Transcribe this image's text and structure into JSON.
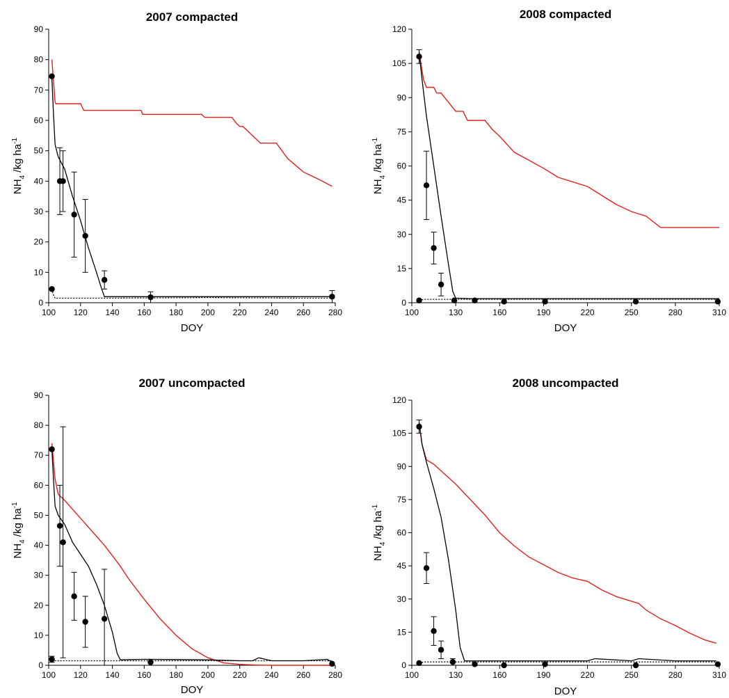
{
  "chart_data": [
    {
      "type": "line",
      "title": "2007 compacted",
      "xlabel": "DOY",
      "ylabel": "NH4 /kg ha-1",
      "ylabel_main": "NH",
      "ylabel_sub": "4",
      "ylabel_units": " /kg ha",
      "ylabel_sup": "-1",
      "xlim": [
        100,
        280
      ],
      "ylim": [
        0,
        90
      ],
      "xticks": [
        100,
        120,
        140,
        160,
        180,
        200,
        220,
        240,
        260,
        280
      ],
      "yticks": [
        0,
        10,
        20,
        30,
        40,
        50,
        60,
        70,
        80,
        90
      ],
      "series": [
        {
          "style": "red",
          "color": "#e0201b",
          "x": [
            102,
            104,
            104.5,
            120,
            122,
            158,
            159,
            196,
            198,
            215,
            218,
            220,
            222,
            233,
            235,
            243,
            250,
            260,
            270,
            278
          ],
          "y": [
            80,
            66,
            65.5,
            65.5,
            63.3,
            63.3,
            62,
            62,
            61,
            61,
            59,
            58,
            58,
            52.5,
            52.5,
            52.5,
            47.5,
            43,
            40.5,
            38.3
          ]
        },
        {
          "style": "black",
          "color": "#000000",
          "x": [
            102,
            103,
            104,
            106,
            110,
            115,
            120,
            125,
            130,
            133,
            135,
            150,
            180,
            220,
            260,
            278
          ],
          "y": [
            74,
            62,
            52,
            48,
            44,
            35,
            27,
            18,
            10,
            5,
            2,
            2,
            2,
            2,
            2,
            2
          ]
        },
        {
          "style": "dotted",
          "color": "#000000",
          "x": [
            102,
            103,
            104,
            110,
            140,
            200,
            260,
            278
          ],
          "y": [
            4.5,
            2.5,
            1.5,
            1.5,
            1.5,
            1.7,
            1.5,
            1.5
          ]
        }
      ],
      "points": [
        {
          "x": 102,
          "y": 74.5,
          "err": 0
        },
        {
          "x": 102,
          "y": 4.5,
          "err": 0
        },
        {
          "x": 107,
          "y": 40,
          "err": 11
        },
        {
          "x": 109,
          "y": 40,
          "err": 10
        },
        {
          "x": 116,
          "y": 29,
          "err": 14
        },
        {
          "x": 123,
          "y": 22,
          "err": 12
        },
        {
          "x": 135,
          "y": 7.5,
          "err": 3
        },
        {
          "x": 164,
          "y": 1.8,
          "err": 1.8
        },
        {
          "x": 278,
          "y": 2,
          "err": 2
        }
      ]
    },
    {
      "type": "line",
      "title": "2008 compacted",
      "xlabel": "DOY",
      "ylabel": "NH4 /kg ha-1",
      "ylabel_main": "NH",
      "ylabel_sub": "4",
      "ylabel_units": " /kg ha",
      "ylabel_sup": "-1",
      "xlim": [
        100,
        310
      ],
      "ylim": [
        0,
        120
      ],
      "xticks": [
        100,
        130,
        160,
        190,
        220,
        250,
        280,
        310
      ],
      "yticks": [
        0,
        15,
        30,
        45,
        60,
        75,
        90,
        105,
        120
      ],
      "series": [
        {
          "style": "red",
          "color": "#e0201b",
          "x": [
            105,
            108,
            110,
            115,
            117,
            120,
            125,
            130,
            135,
            138,
            142,
            150,
            155,
            160,
            170,
            180,
            190,
            200,
            210,
            220,
            230,
            240,
            250,
            260,
            270,
            280,
            290,
            300,
            310
          ],
          "y": [
            110,
            98,
            94.5,
            94.5,
            92,
            92,
            88,
            84,
            84,
            80,
            80,
            80,
            76,
            73,
            66,
            62.5,
            59,
            55,
            53,
            51,
            47,
            43,
            40,
            38,
            33,
            33,
            33,
            33,
            33
          ]
        },
        {
          "style": "black",
          "color": "#000000",
          "x": [
            105,
            107,
            110,
            115,
            120,
            125,
            128,
            130,
            140,
            160,
            190,
            220,
            250,
            280,
            310
          ],
          "y": [
            110,
            98,
            82,
            60,
            38,
            17,
            5,
            2,
            1.8,
            1.8,
            1.8,
            1.8,
            1.8,
            1.8,
            1.8
          ]
        },
        {
          "style": "dotted",
          "color": "#000000",
          "x": [
            105,
            108,
            115,
            140,
            190,
            250,
            310
          ],
          "y": [
            1,
            1.5,
            1.5,
            1.5,
            1.5,
            1.5,
            1.5
          ]
        }
      ],
      "points": [
        {
          "x": 105,
          "y": 108,
          "err": 3
        },
        {
          "x": 105,
          "y": 1,
          "err": 0
        },
        {
          "x": 110,
          "y": 51.5,
          "err": 15
        },
        {
          "x": 115,
          "y": 24,
          "err": 7
        },
        {
          "x": 120,
          "y": 8,
          "err": 5
        },
        {
          "x": 129,
          "y": 1,
          "err": 0
        },
        {
          "x": 143,
          "y": 1,
          "err": 0
        },
        {
          "x": 163,
          "y": 0.5,
          "err": 0
        },
        {
          "x": 191,
          "y": 0.5,
          "err": 0
        },
        {
          "x": 253,
          "y": 0.5,
          "err": 0
        },
        {
          "x": 309,
          "y": 0.5,
          "err": 0
        }
      ]
    },
    {
      "type": "line",
      "title": "2007 uncompacted",
      "xlabel": "DOY",
      "ylabel": "NH4 /kg ha-1",
      "ylabel_main": "NH",
      "ylabel_sub": "4",
      "ylabel_units": " /kg ha",
      "ylabel_sup": "-1",
      "xlim": [
        100,
        280
      ],
      "ylim": [
        0,
        90
      ],
      "xticks": [
        100,
        120,
        140,
        160,
        180,
        200,
        220,
        240,
        260,
        280
      ],
      "yticks": [
        0,
        10,
        20,
        30,
        40,
        50,
        60,
        70,
        80,
        90
      ],
      "series": [
        {
          "style": "red",
          "color": "#e0201b",
          "x": [
            102,
            104,
            106,
            110,
            115,
            120,
            125,
            130,
            135,
            140,
            145,
            150,
            160,
            170,
            180,
            190,
            200,
            210,
            220,
            230,
            240,
            260,
            278
          ],
          "y": [
            74,
            62,
            57,
            55,
            52,
            49,
            46,
            43,
            40,
            36.5,
            33,
            29,
            22,
            15.5,
            10,
            5.5,
            2.5,
            0.8,
            0.3,
            0.1,
            0,
            0,
            0
          ]
        },
        {
          "style": "black",
          "color": "#000000",
          "x": [
            102,
            103,
            104,
            106,
            110,
            115,
            120,
            125,
            130,
            135,
            140,
            143,
            145,
            160,
            200,
            220,
            228,
            232,
            240,
            260,
            275,
            278
          ],
          "y": [
            72,
            62,
            53,
            50,
            47,
            41,
            37,
            33,
            27,
            20,
            11,
            4,
            1.8,
            2,
            1.8,
            1.5,
            1.5,
            2.5,
            1.5,
            1.5,
            2,
            1
          ]
        },
        {
          "style": "dotted",
          "color": "#000000",
          "x": [
            102,
            110,
            140,
            200,
            260,
            278
          ],
          "y": [
            1.5,
            1.5,
            1.5,
            1.5,
            1.5,
            1.5
          ]
        }
      ],
      "points": [
        {
          "x": 102,
          "y": 72,
          "err": 0
        },
        {
          "x": 102,
          "y": 2,
          "err": 1
        },
        {
          "x": 107,
          "y": 46.5,
          "err": 13.5
        },
        {
          "x": 109,
          "y": 41,
          "err": 38.5
        },
        {
          "x": 116,
          "y": 23,
          "err": 8
        },
        {
          "x": 123,
          "y": 14.5,
          "err": 8.5
        },
        {
          "x": 135,
          "y": 15.5,
          "err": 16.5
        },
        {
          "x": 164,
          "y": 1,
          "err": 0
        },
        {
          "x": 278,
          "y": 0.5,
          "err": 0
        }
      ]
    },
    {
      "type": "line",
      "title": "2008 uncompacted",
      "xlabel": "DOY",
      "ylabel": "NH4 /kg ha-1",
      "ylabel_main": "NH",
      "ylabel_sub": "4",
      "ylabel_units": " /kg ha",
      "ylabel_sup": "-1",
      "xlim": [
        100,
        310
      ],
      "ylim": [
        0,
        120
      ],
      "xticks": [
        100,
        130,
        160,
        190,
        220,
        250,
        280,
        310
      ],
      "yticks": [
        0,
        15,
        30,
        45,
        60,
        75,
        90,
        105,
        120
      ],
      "series": [
        {
          "style": "red",
          "color": "#e0201b",
          "x": [
            105,
            107,
            110,
            115,
            120,
            130,
            140,
            150,
            160,
            170,
            180,
            190,
            200,
            210,
            220,
            230,
            240,
            250,
            255,
            260,
            270,
            280,
            290,
            300,
            308
          ],
          "y": [
            110,
            100,
            93,
            91,
            88,
            82,
            75,
            68,
            60,
            54,
            49,
            45.5,
            42,
            39.5,
            38,
            34,
            31,
            29,
            28,
            25,
            21,
            18,
            14.5,
            11.5,
            10
          ]
        },
        {
          "style": "black",
          "color": "#000000",
          "x": [
            105,
            107,
            110,
            115,
            120,
            125,
            130,
            133,
            136,
            150,
            190,
            220,
            225,
            250,
            255,
            280,
            308
          ],
          "y": [
            110,
            100,
            92,
            80,
            67,
            48,
            25,
            8,
            2,
            2,
            2,
            2,
            3,
            2,
            3,
            2,
            2
          ]
        },
        {
          "style": "dotted",
          "color": "#000000",
          "x": [
            105,
            108,
            115,
            140,
            190,
            250,
            308
          ],
          "y": [
            1,
            1.5,
            1.5,
            1.5,
            1.5,
            1.5,
            1.5
          ]
        }
      ],
      "points": [
        {
          "x": 105,
          "y": 108,
          "err": 3
        },
        {
          "x": 105,
          "y": 1,
          "err": 0
        },
        {
          "x": 110,
          "y": 44,
          "err": 7
        },
        {
          "x": 115,
          "y": 15.5,
          "err": 6.5
        },
        {
          "x": 120,
          "y": 7,
          "err": 4
        },
        {
          "x": 128,
          "y": 1.5,
          "err": 1.5
        },
        {
          "x": 143,
          "y": 0.5,
          "err": 0
        },
        {
          "x": 163,
          "y": 0,
          "err": 0
        },
        {
          "x": 191,
          "y": 0.5,
          "err": 0
        },
        {
          "x": 253,
          "y": 0,
          "err": 0
        },
        {
          "x": 309,
          "y": 0.5,
          "err": 0
        }
      ]
    }
  ]
}
